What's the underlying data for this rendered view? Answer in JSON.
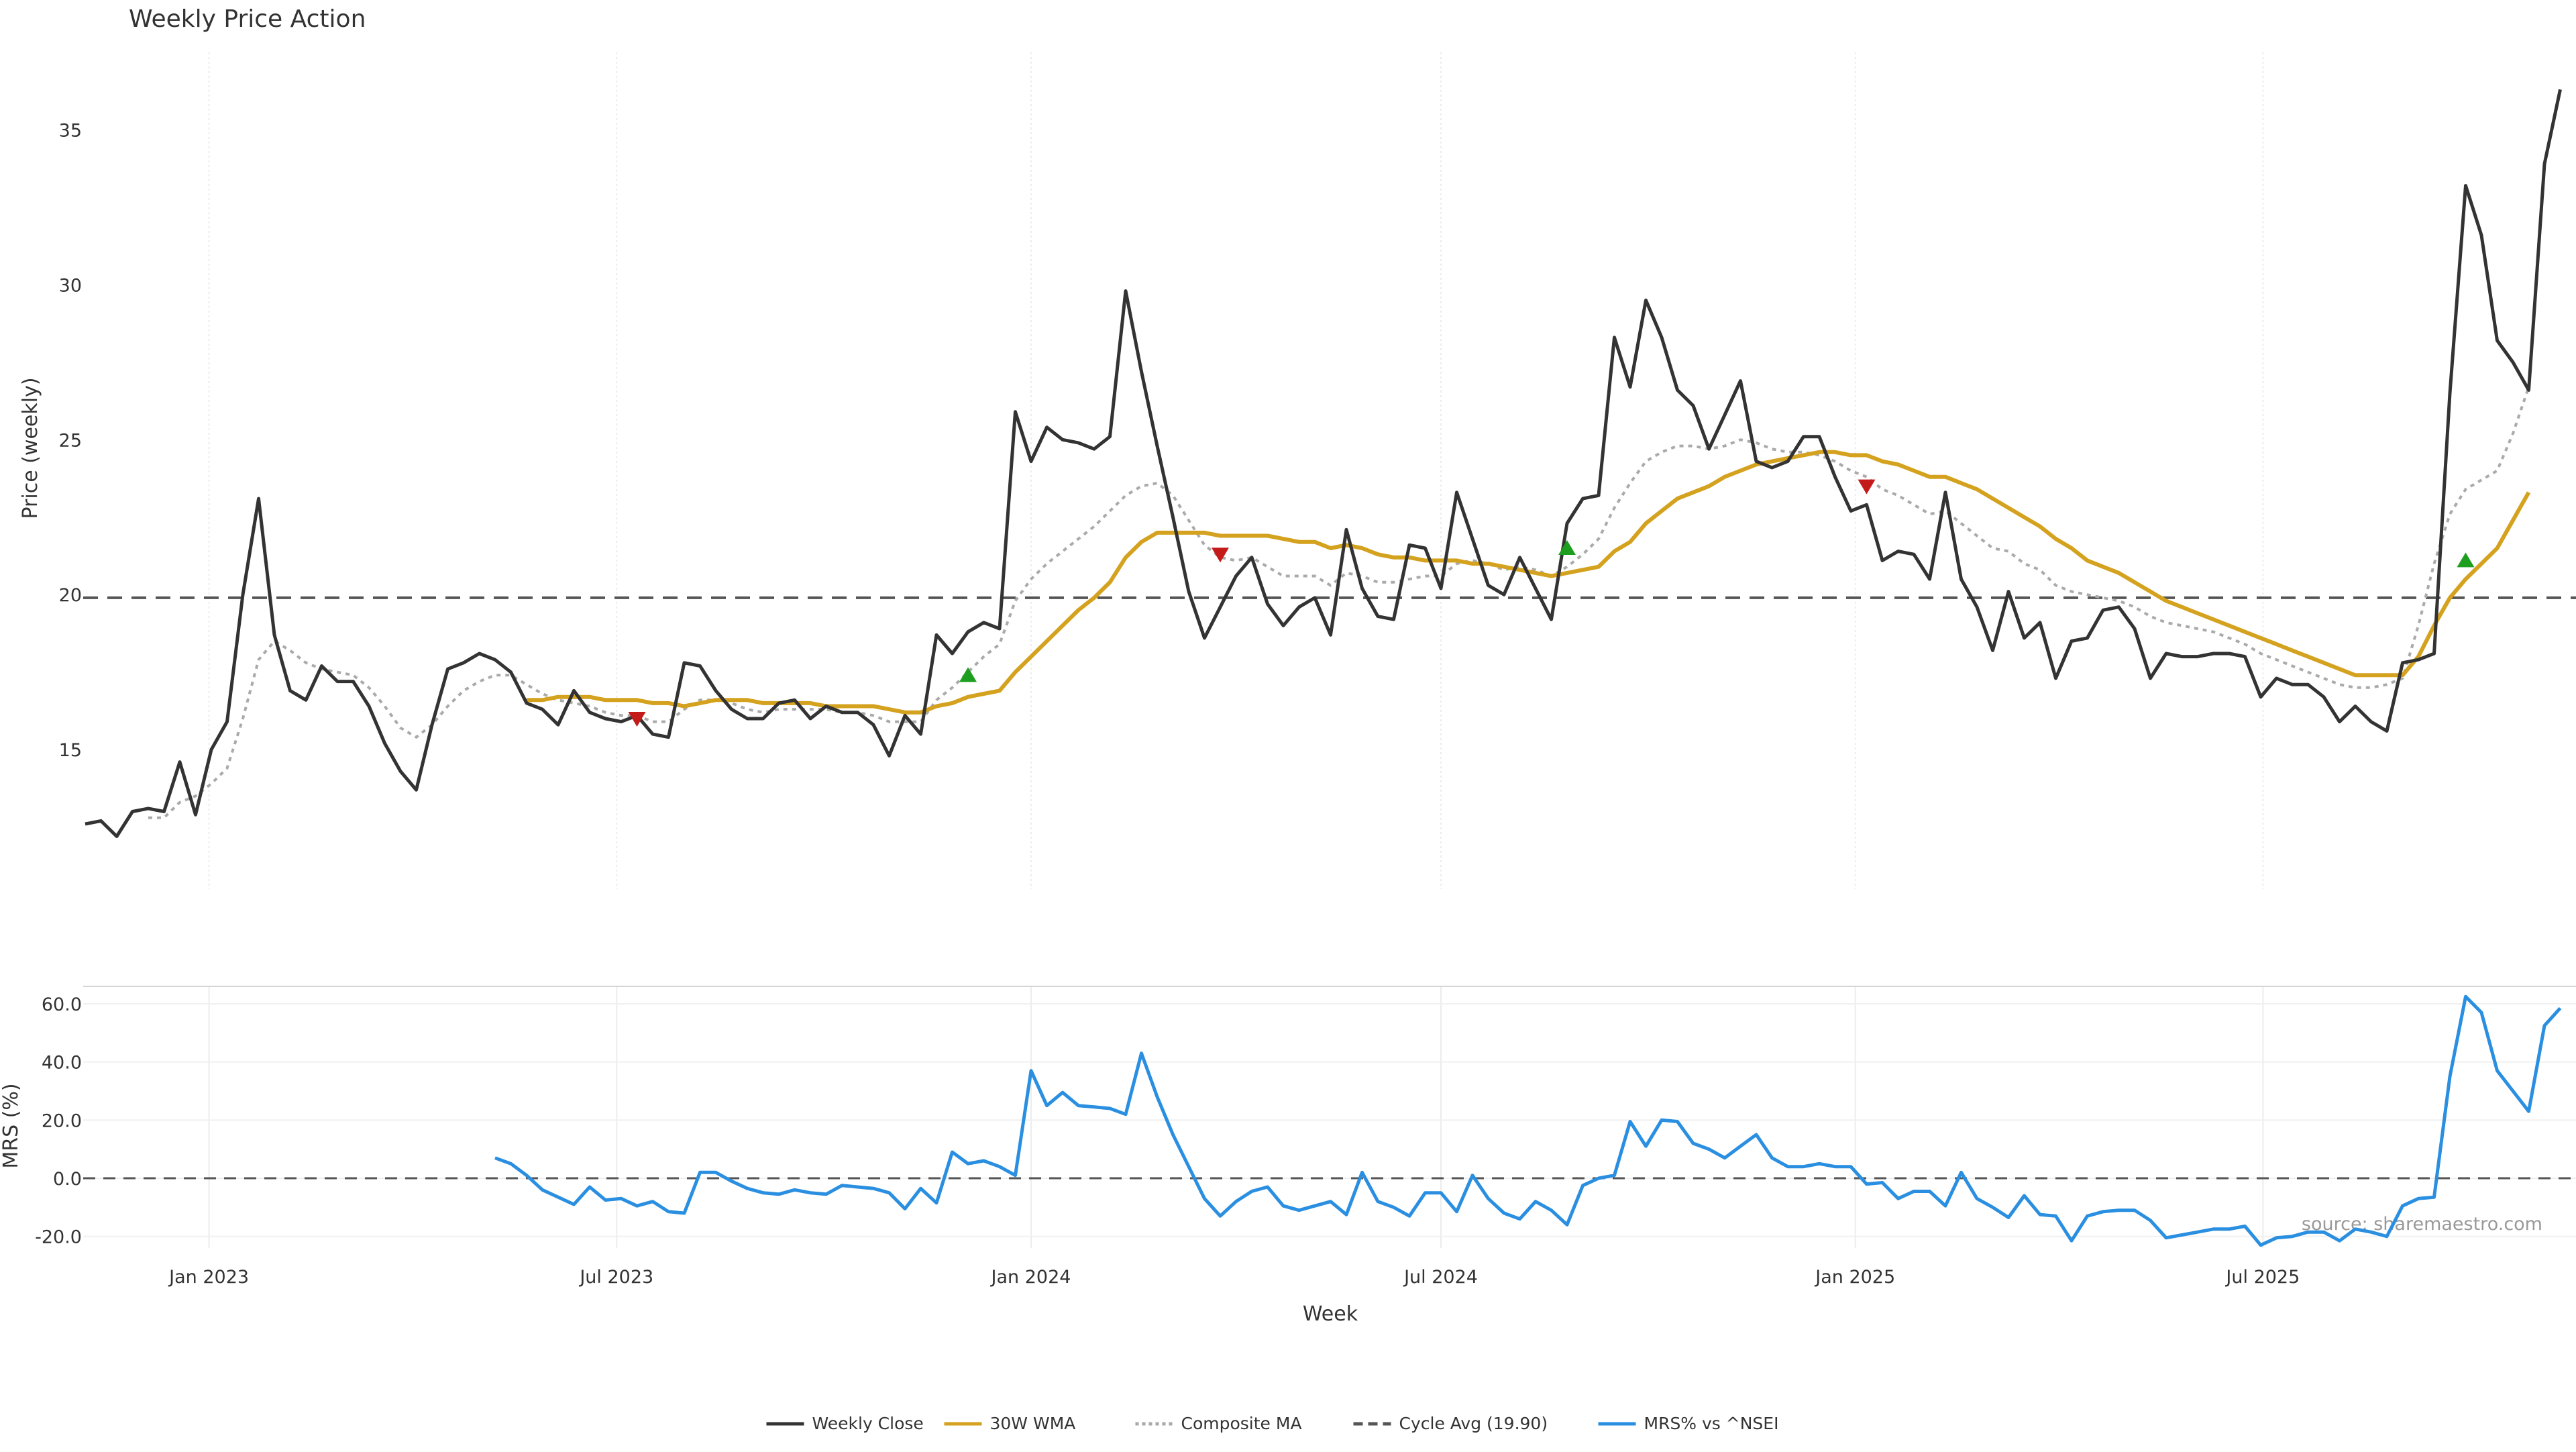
{
  "chart_data": {
    "type": "line",
    "title": "Weekly Price Action",
    "xlabel": "Week",
    "x_ticks": [
      "Jan 2023",
      "Jul 2023",
      "Jan 2024",
      "Jul 2024",
      "Jan 2025",
      "Jul 2025"
    ],
    "x_range": [
      "2022-11-07",
      "2025-11-03"
    ],
    "price_panel": {
      "ylabel": "Price (weekly)",
      "ylim": [
        10.5,
        37.5
      ],
      "y_ticks": [
        15,
        20,
        25,
        30,
        35
      ],
      "cycle_average": 19.9,
      "weekly_close": [
        12.6,
        12.7,
        12.2,
        13.0,
        13.1,
        13.0,
        14.6,
        12.9,
        15.0,
        15.9,
        20.0,
        23.1,
        18.7,
        16.9,
        16.6,
        17.7,
        17.2,
        17.2,
        16.4,
        15.2,
        14.3,
        13.7,
        15.8,
        17.6,
        17.8,
        18.1,
        17.9,
        17.5,
        16.5,
        16.3,
        15.8,
        16.9,
        16.2,
        16.0,
        15.9,
        16.1,
        15.5,
        15.4,
        17.8,
        17.7,
        16.9,
        16.3,
        16.0,
        16.0,
        16.5,
        16.6,
        16.0,
        16.4,
        16.2,
        16.2,
        15.8,
        14.8,
        16.1,
        15.5,
        18.7,
        18.1,
        18.8,
        19.1,
        18.9,
        25.9,
        24.3,
        25.4,
        25.0,
        24.9,
        24.7,
        25.1,
        29.8,
        27.2,
        24.8,
        22.5,
        20.1,
        18.6,
        19.6,
        20.6,
        21.2,
        19.7,
        19.0,
        19.6,
        19.9,
        18.7,
        22.1,
        20.2,
        19.3,
        19.2,
        21.6,
        21.5,
        20.2,
        23.3,
        21.8,
        20.3,
        20.0,
        21.2,
        20.2,
        19.2,
        22.3,
        23.1,
        23.2,
        28.3,
        26.7,
        29.5,
        28.3,
        26.6,
        26.1,
        24.7,
        25.8,
        26.9,
        24.3,
        24.1,
        24.3,
        25.1,
        25.1,
        23.8,
        22.7,
        22.9,
        21.1,
        21.4,
        21.3,
        20.5,
        23.3,
        20.5,
        19.6,
        18.2,
        20.1,
        18.6,
        19.1,
        17.3,
        18.5,
        18.6,
        19.5,
        19.6,
        18.9,
        17.3,
        18.1,
        18.0,
        18.0,
        18.1,
        18.1,
        18.0,
        16.7,
        17.3,
        17.1,
        17.1,
        16.7,
        15.9,
        16.4,
        15.9,
        15.6,
        17.8,
        17.9,
        18.1,
        26.5,
        33.2,
        31.6,
        28.2,
        27.5,
        26.6,
        33.9,
        36.3
      ],
      "wma_30w": [
        null,
        null,
        null,
        null,
        null,
        null,
        null,
        null,
        null,
        null,
        null,
        null,
        null,
        null,
        null,
        null,
        null,
        null,
        null,
        null,
        null,
        null,
        null,
        null,
        null,
        null,
        null,
        null,
        16.6,
        16.6,
        16.7,
        16.7,
        16.7,
        16.6,
        16.6,
        16.6,
        16.5,
        16.5,
        16.4,
        16.5,
        16.6,
        16.6,
        16.6,
        16.5,
        16.5,
        16.5,
        16.5,
        16.4,
        16.4,
        16.4,
        16.4,
        16.3,
        16.2,
        16.2,
        16.4,
        16.5,
        16.7,
        16.8,
        16.9,
        17.5,
        18.0,
        18.5,
        19.0,
        19.5,
        19.9,
        20.4,
        21.2,
        21.7,
        22.0,
        22.0,
        22.0,
        22.0,
        21.9,
        21.9,
        21.9,
        21.9,
        21.8,
        21.7,
        21.7,
        21.5,
        21.6,
        21.5,
        21.3,
        21.2,
        21.2,
        21.1,
        21.1,
        21.1,
        21.0,
        21.0,
        20.9,
        20.8,
        20.7,
        20.6,
        20.7,
        20.8,
        20.9,
        21.4,
        21.7,
        22.3,
        22.7,
        23.1,
        23.3,
        23.5,
        23.8,
        24.0,
        24.2,
        24.3,
        24.4,
        24.5,
        24.6,
        24.6,
        24.5,
        24.5,
        24.3,
        24.2,
        24.0,
        23.8,
        23.8,
        23.6,
        23.4,
        23.1,
        22.8,
        22.5,
        22.2,
        21.8,
        21.5,
        21.1,
        20.9,
        20.7,
        20.4,
        20.1,
        19.8,
        19.6,
        19.4,
        19.2,
        19.0,
        18.8,
        18.6,
        18.4,
        18.2,
        18.0,
        17.8,
        17.6,
        17.4,
        17.4,
        17.4,
        17.4,
        18.0,
        19.0,
        19.9,
        20.5,
        21.0,
        21.5,
        22.4,
        23.3
      ],
      "composite_ma": [
        null,
        null,
        null,
        null,
        12.8,
        12.8,
        13.3,
        13.5,
        13.9,
        14.4,
        16.0,
        17.9,
        18.5,
        18.2,
        17.8,
        17.6,
        17.5,
        17.4,
        17.0,
        16.4,
        15.7,
        15.4,
        15.8,
        16.4,
        16.9,
        17.2,
        17.4,
        17.4,
        17.1,
        16.8,
        16.6,
        16.5,
        16.4,
        16.2,
        16.1,
        16.1,
        15.9,
        15.9,
        16.3,
        16.6,
        16.6,
        16.5,
        16.3,
        16.2,
        16.3,
        16.3,
        16.3,
        16.3,
        16.2,
        16.2,
        16.1,
        15.9,
        15.9,
        15.9,
        16.6,
        17.0,
        17.5,
        18.0,
        18.4,
        19.8,
        20.5,
        21.0,
        21.4,
        21.8,
        22.2,
        22.7,
        23.2,
        23.5,
        23.6,
        23.2,
        22.4,
        21.6,
        21.2,
        21.1,
        21.2,
        20.9,
        20.6,
        20.6,
        20.6,
        20.3,
        20.7,
        20.6,
        20.4,
        20.4,
        20.5,
        20.6,
        20.6,
        21.0,
        21.1,
        21.0,
        20.8,
        20.9,
        20.8,
        20.6,
        20.9,
        21.3,
        21.8,
        22.8,
        23.6,
        24.3,
        24.6,
        24.8,
        24.8,
        24.7,
        24.8,
        25.0,
        24.9,
        24.7,
        24.6,
        24.6,
        24.5,
        24.3,
        24.0,
        23.8,
        23.4,
        23.2,
        22.9,
        22.6,
        22.7,
        22.3,
        21.9,
        21.5,
        21.4,
        21.0,
        20.8,
        20.3,
        20.1,
        20.0,
        19.9,
        19.8,
        19.6,
        19.3,
        19.1,
        19.0,
        18.9,
        18.8,
        18.6,
        18.4,
        18.1,
        17.9,
        17.7,
        17.5,
        17.3,
        17.1,
        17.0,
        17.0,
        17.1,
        17.3,
        19.0,
        21.0,
        22.6,
        23.4,
        23.7,
        24.0,
        25.2,
        26.7
      ],
      "buy_signals": [
        {
          "x": "2023-12-04",
          "y": 17.4
        },
        {
          "x": "2024-08-26",
          "y": 21.5
        },
        {
          "x": "2025-09-29",
          "y": 21.1
        }
      ],
      "sell_signals": [
        {
          "x": "2023-07-10",
          "y": 16.0
        },
        {
          "x": "2024-03-25",
          "y": 21.3
        },
        {
          "x": "2025-01-06",
          "y": 23.5
        }
      ]
    },
    "mrs_panel": {
      "ylabel": "MRS (%)",
      "ylim": [
        -24,
        66
      ],
      "y_ticks": [
        -20,
        0,
        20,
        40,
        60
      ],
      "y_tick_labels": [
        "-20.0",
        "0.0",
        "20.0",
        "40.0",
        "60.0"
      ],
      "values": [
        null,
        null,
        null,
        null,
        null,
        null,
        null,
        null,
        null,
        null,
        null,
        null,
        null,
        null,
        null,
        null,
        null,
        null,
        null,
        null,
        null,
        null,
        null,
        null,
        null,
        null,
        7.0,
        5.0,
        1.0,
        -4.0,
        -6.5,
        -9.0,
        -3.0,
        -7.5,
        -7.0,
        -9.5,
        -8.0,
        -11.5,
        -12.0,
        2.0,
        2.0,
        -1.0,
        -3.5,
        -5.0,
        -5.5,
        -4.0,
        -5.0,
        -5.5,
        -2.5,
        -3.0,
        -3.5,
        -5.0,
        -10.5,
        -3.5,
        -8.5,
        9.0,
        5.0,
        6.0,
        4.0,
        1.0,
        37.0,
        25.0,
        29.5,
        25.0,
        24.5,
        24.0,
        22.0,
        43.0,
        28.0,
        15.0,
        4.0,
        -7.0,
        -13.0,
        -8.0,
        -4.5,
        -3.0,
        -9.5,
        -11.0,
        -9.5,
        -8.0,
        -12.5,
        2.0,
        -8.0,
        -10.0,
        -13.0,
        -5.0,
        -5.0,
        -11.5,
        1.0,
        -7.0,
        -12.0,
        -14.0,
        -8.0,
        -11.0,
        -16.0,
        -2.5,
        0.0,
        1.0,
        19.5,
        11.0,
        20.0,
        19.5,
        12.0,
        10.0,
        7.0,
        11.0,
        15.0,
        7.0,
        4.0,
        4.0,
        5.0,
        4.0,
        4.0,
        -2.0,
        -1.5,
        -7.0,
        -4.5,
        -4.5,
        -9.5,
        2.0,
        -7.0,
        -10.0,
        -13.5,
        -6.0,
        -12.5,
        -13.0,
        -21.5,
        -13.0,
        -11.5,
        -11.0,
        -11.0,
        -14.5,
        -20.5,
        -19.5,
        -18.5,
        -17.5,
        -17.5,
        -16.5,
        -23.0,
        -20.5,
        -20.0,
        -18.5,
        -18.5,
        -21.5,
        -17.5,
        -18.5,
        -20.0,
        -9.5,
        -7.0,
        -6.5,
        35.0,
        62.5,
        57.0,
        37.0,
        30.0,
        23.0,
        52.5,
        58.5
      ],
      "source": "source: sharemaestro.com"
    },
    "legend": [
      {
        "label": "Weekly Close",
        "color": "#333333",
        "style": "solid"
      },
      {
        "label": "30W WMA",
        "color": "#D4A21E",
        "style": "solid"
      },
      {
        "label": "Composite MA",
        "color": "#AAAAAA",
        "style": "dotted"
      },
      {
        "label": "Cycle Avg (19.90)",
        "color": "#555555",
        "style": "dashed"
      },
      {
        "label": "MRS% vs ^NSEI",
        "color": "#2A8FE0",
        "style": "solid"
      }
    ],
    "colors": {
      "close": "#333333",
      "wma": "#D4A21E",
      "composite": "#AAAAAA",
      "cycle": "#555555",
      "mrs": "#2A8FE0",
      "buy": "#1E9E1E",
      "sell": "#C41A1A"
    },
    "legend_position": "bottom-center",
    "grid": true
  }
}
